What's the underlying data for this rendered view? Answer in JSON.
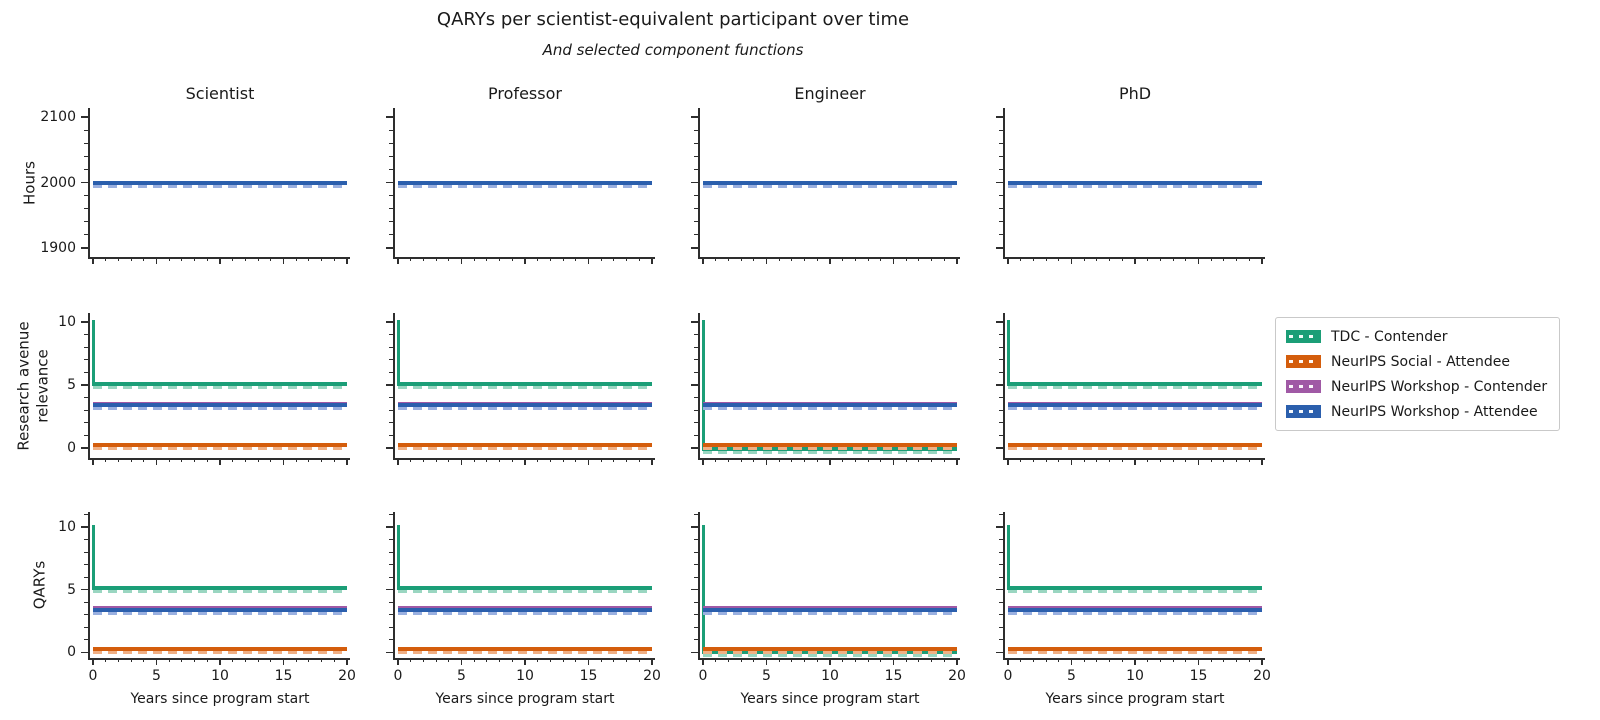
{
  "chart_data": {
    "type": "line",
    "title": "QARYs per scientist-equivalent participant over time",
    "subtitle": "And selected component functions",
    "columns": [
      "Scientist",
      "Professor",
      "Engineer",
      "PhD"
    ],
    "x": {
      "label": "Years since program start",
      "lim": [
        0,
        20
      ],
      "ticks": [
        0,
        5,
        10,
        15,
        20
      ],
      "minor_tick_step": 1
    },
    "style_note": "solid line = total function; overlaid lighter dashed line = selected component function; top and right spines hidden",
    "legend": {
      "position": "right-of-middle-row",
      "entries": [
        {
          "key": "tdc",
          "label": "TDC - Contender",
          "color": "#1b9e77",
          "light": "#9ad6c1"
        },
        {
          "key": "social",
          "label": "NeurIPS Social - Attendee",
          "color": "#d45d0c",
          "light": "#f0b085"
        },
        {
          "key": "workshop_contender",
          "label": "NeurIPS Workshop - Contender",
          "color": "#a059a5",
          "light": "#d2abd4"
        },
        {
          "key": "workshop_attendee",
          "label": "NeurIPS Workshop - Attendee",
          "color": "#2b5fad",
          "light": "#9ab0e0"
        }
      ]
    },
    "rows": [
      {
        "ylabel": "Hours",
        "yticks": [
          1900,
          2000,
          2100
        ],
        "ylim": [
          1886,
          2114
        ],
        "minor_tick_step": 20,
        "panels": [
          {
            "column": "Scientist",
            "series": [
              {
                "key": "tdc",
                "steady": 2000
              },
              {
                "key": "social",
                "steady": 2000
              },
              {
                "key": "workshop_contender",
                "steady": 2000
              },
              {
                "key": "workshop_attendee",
                "steady": 2000
              }
            ]
          },
          {
            "column": "Professor",
            "series": [
              {
                "key": "tdc",
                "steady": 2000
              },
              {
                "key": "social",
                "steady": 2000
              },
              {
                "key": "workshop_contender",
                "steady": 2000
              },
              {
                "key": "workshop_attendee",
                "steady": 2000
              }
            ]
          },
          {
            "column": "Engineer",
            "series": [
              {
                "key": "tdc",
                "steady": 2000
              },
              {
                "key": "social",
                "steady": 2000
              },
              {
                "key": "workshop_contender",
                "steady": 2000
              },
              {
                "key": "workshop_attendee",
                "steady": 2000
              }
            ]
          },
          {
            "column": "PhD",
            "series": [
              {
                "key": "tdc",
                "steady": 2000
              },
              {
                "key": "social",
                "steady": 2000
              },
              {
                "key": "workshop_contender",
                "steady": 2000
              },
              {
                "key": "workshop_attendee",
                "steady": 2000
              }
            ]
          }
        ]
      },
      {
        "ylabel": "Research avenue\nrelevance",
        "yticks": [
          0,
          5,
          10
        ],
        "ylim": [
          -0.8,
          10.7
        ],
        "minor_tick_step": 1,
        "panels": [
          {
            "column": "Scientist",
            "series": [
              {
                "key": "tdc",
                "start": 10,
                "steady": 5.1
              },
              {
                "key": "social",
                "steady": 0.25
              },
              {
                "key": "workshop_contender",
                "steady": 3.52
              },
              {
                "key": "workshop_attendee",
                "steady": 3.38
              }
            ]
          },
          {
            "column": "Professor",
            "series": [
              {
                "key": "tdc",
                "start": 10,
                "steady": 5.1
              },
              {
                "key": "social",
                "steady": 0.25
              },
              {
                "key": "workshop_contender",
                "steady": 3.52
              },
              {
                "key": "workshop_attendee",
                "steady": 3.38
              }
            ]
          },
          {
            "column": "Engineer",
            "series": [
              {
                "key": "tdc",
                "start": 10,
                "steady": -0.1
              },
              {
                "key": "social",
                "steady": 0.25
              },
              {
                "key": "workshop_contender",
                "steady": 3.52
              },
              {
                "key": "workshop_attendee",
                "steady": 3.38
              }
            ]
          },
          {
            "column": "PhD",
            "series": [
              {
                "key": "tdc",
                "start": 10,
                "steady": 5.1
              },
              {
                "key": "social",
                "steady": 0.25
              },
              {
                "key": "workshop_contender",
                "steady": 3.52
              },
              {
                "key": "workshop_attendee",
                "steady": 3.38
              }
            ]
          }
        ]
      },
      {
        "ylabel": "QARYs",
        "yticks": [
          0,
          5,
          10
        ],
        "ylim": [
          -0.45,
          11.2
        ],
        "minor_tick_step": 1,
        "panels": [
          {
            "column": "Scientist",
            "series": [
              {
                "key": "tdc",
                "start": 10,
                "steady": 5.1
              },
              {
                "key": "social",
                "steady": 0.25
              },
              {
                "key": "workshop_contender",
                "steady": 3.55
              },
              {
                "key": "workshop_attendee",
                "steady": 3.4
              }
            ]
          },
          {
            "column": "Professor",
            "series": [
              {
                "key": "tdc",
                "start": 10,
                "steady": 5.1
              },
              {
                "key": "social",
                "steady": 0.25
              },
              {
                "key": "workshop_contender",
                "steady": 3.55
              },
              {
                "key": "workshop_attendee",
                "steady": 3.4
              }
            ]
          },
          {
            "column": "Engineer",
            "series": [
              {
                "key": "tdc",
                "start": 10,
                "steady": 0.0
              },
              {
                "key": "social",
                "steady": 0.25
              },
              {
                "key": "workshop_contender",
                "steady": 3.55
              },
              {
                "key": "workshop_attendee",
                "steady": 3.4
              }
            ]
          },
          {
            "column": "PhD",
            "series": [
              {
                "key": "tdc",
                "start": 10,
                "steady": 5.1
              },
              {
                "key": "social",
                "steady": 0.25
              },
              {
                "key": "workshop_contender",
                "steady": 3.55
              },
              {
                "key": "workshop_attendee",
                "steady": 3.4
              }
            ]
          }
        ]
      }
    ]
  }
}
